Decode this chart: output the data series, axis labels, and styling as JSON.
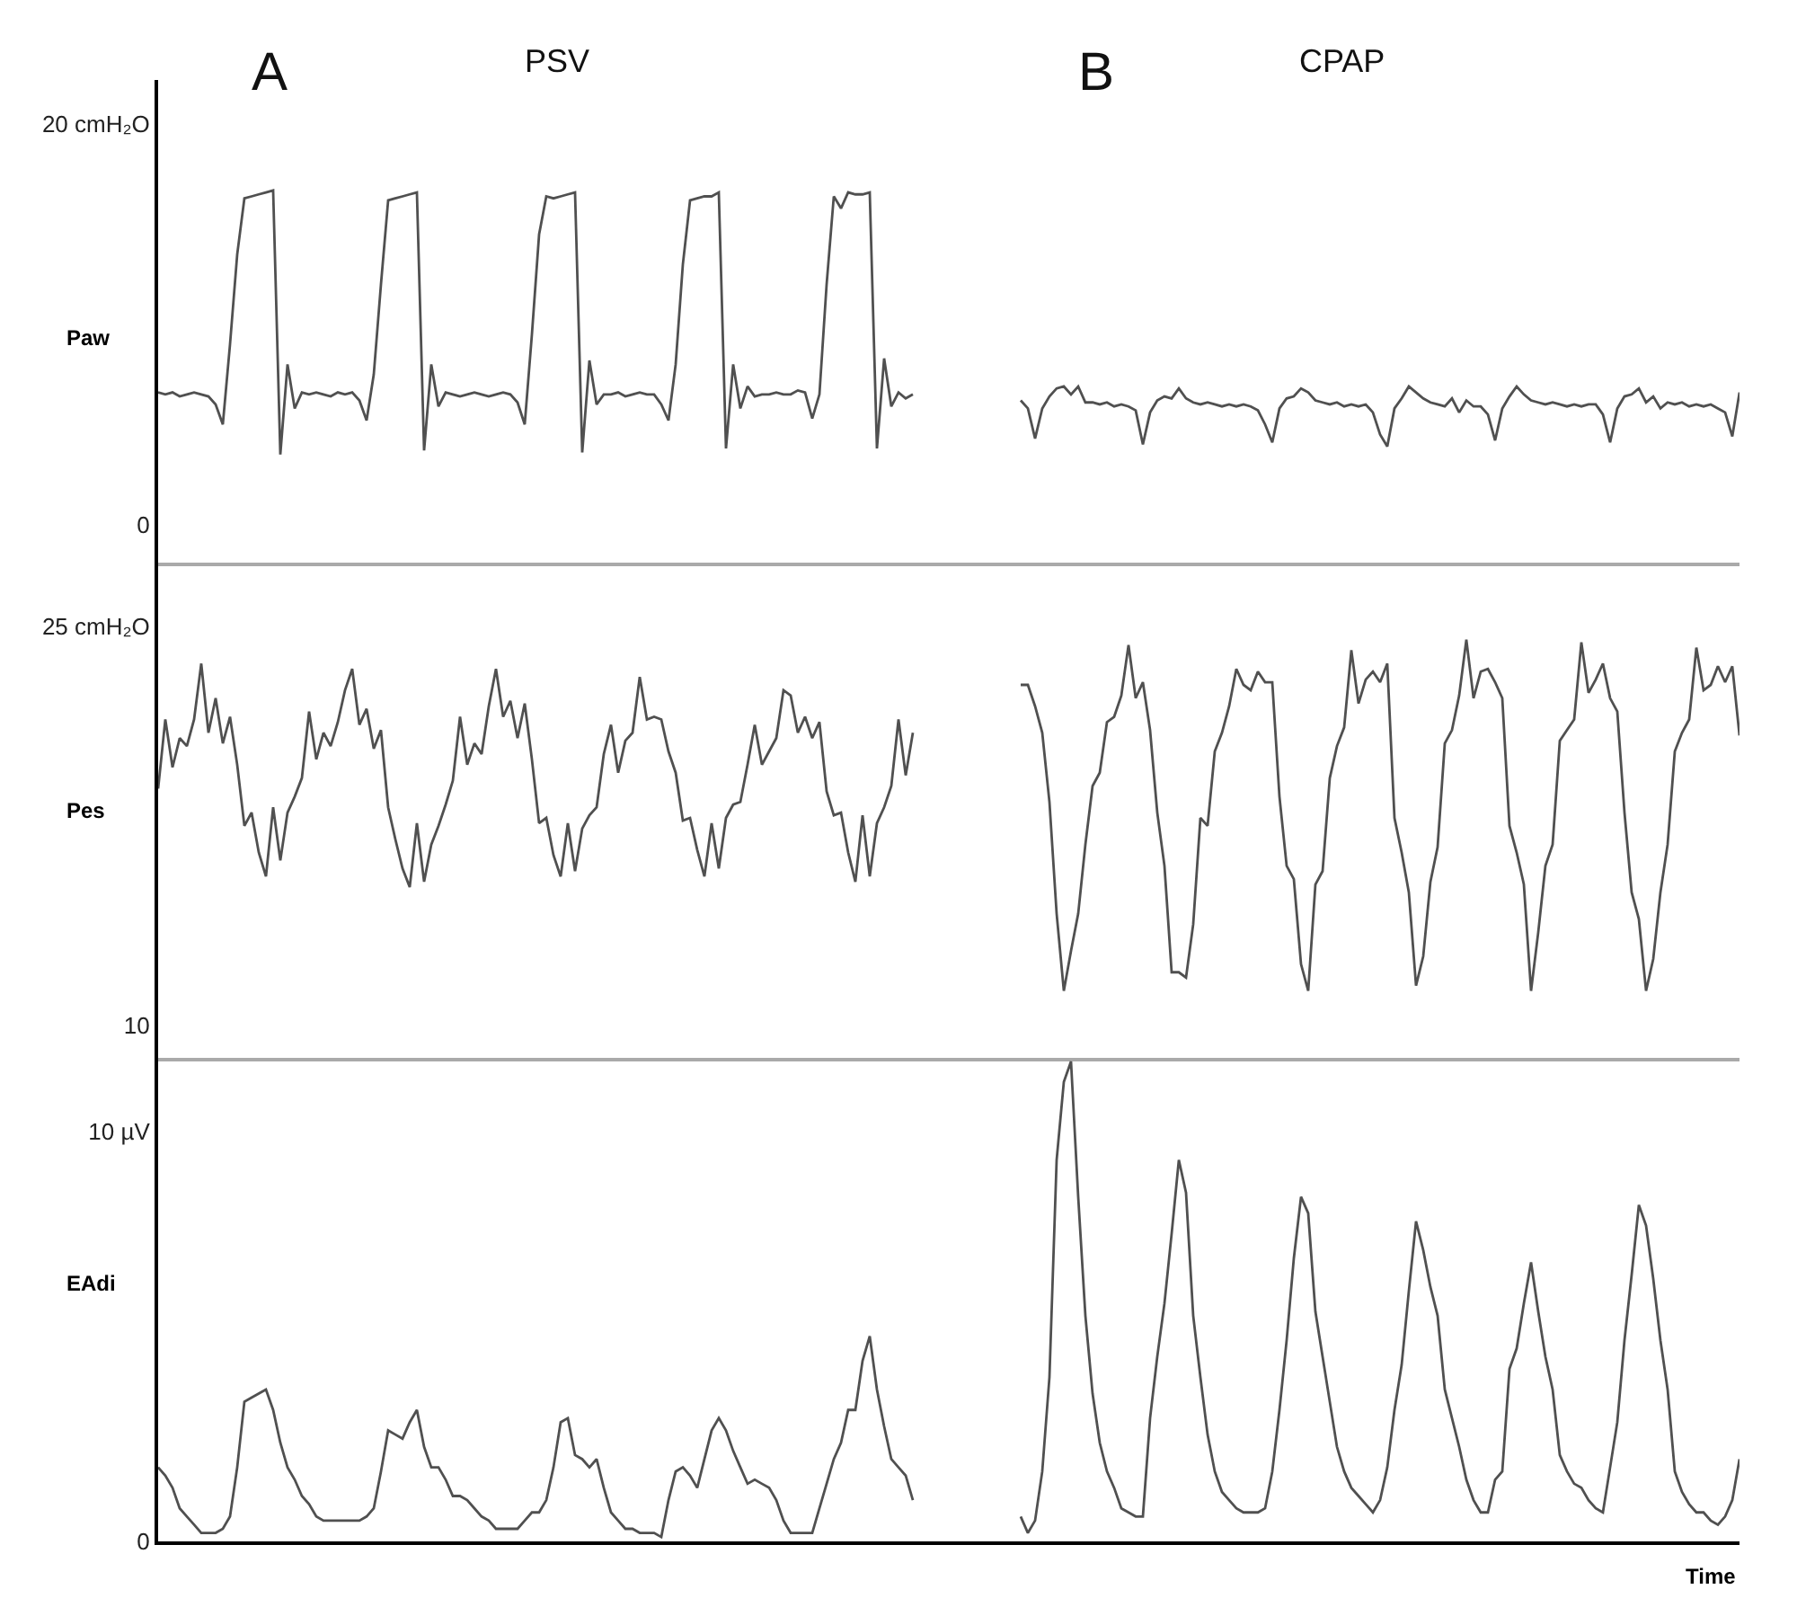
{
  "chart_data": [
    {
      "type": "line",
      "annotations": [
        "A",
        "PSV",
        "B",
        "CPAP"
      ],
      "ylabel": "Paw",
      "ylim": [
        -1.9,
        22.2
      ],
      "yticks": [
        {
          "value": 20,
          "label": "20 cmH₂O"
        },
        0
      ],
      "tick_labels": "y",
      "categories": [
        null,
        null,
        null,
        null,
        null,
        null,
        null,
        null,
        null,
        null,
        null,
        null,
        null,
        null,
        null,
        null,
        null,
        null,
        null,
        null,
        null,
        null,
        null,
        null,
        null,
        null,
        null,
        null,
        null,
        null,
        null,
        null,
        null,
        null,
        null,
        null,
        null,
        null,
        null,
        null,
        null,
        null,
        null,
        null,
        null,
        null,
        null,
        null,
        null,
        null,
        null,
        null,
        null,
        null,
        null,
        null,
        null,
        null,
        null,
        null,
        null,
        null,
        null,
        null,
        null,
        null,
        null,
        null,
        null,
        null,
        null,
        null,
        null,
        null,
        null,
        null,
        null,
        null,
        null,
        null,
        null,
        null,
        null,
        null,
        null,
        null,
        null,
        null,
        null,
        null,
        null,
        null,
        null,
        null,
        null,
        null,
        null,
        null,
        null,
        null,
        null,
        null,
        null,
        null,
        null,
        null,
        null,
        null,
        null,
        null,
        null,
        null,
        null,
        null,
        null,
        null,
        null,
        null,
        null,
        null,
        null,
        null,
        null,
        null,
        null,
        null,
        null,
        null,
        null,
        null,
        null,
        null,
        null,
        null,
        null,
        null,
        null,
        null,
        null,
        null,
        null,
        null,
        null,
        null,
        null,
        null,
        null,
        null,
        null,
        null,
        null,
        null,
        null,
        null,
        null,
        null,
        null,
        null,
        null,
        null,
        null,
        null,
        null,
        null,
        null,
        null,
        null,
        null,
        null,
        null,
        null,
        null,
        null,
        null,
        null,
        null,
        null,
        null,
        null,
        null,
        null,
        null,
        null,
        null,
        null,
        null,
        null,
        null,
        null,
        null,
        null,
        null,
        null,
        null,
        null,
        null,
        null,
        null,
        null,
        null,
        null,
        null,
        null,
        null,
        null,
        null,
        null,
        null,
        null,
        null,
        null,
        null,
        null,
        null,
        null,
        null,
        null,
        null,
        null,
        null,
        null
      ],
      "series": [
        {
          "color": "#505050",
          "values": [
            6.6,
            6.5,
            6.6,
            6.4,
            6.5,
            6.6,
            6.5,
            6.4,
            6.0,
            5.0,
            9.0,
            13.5,
            16.3,
            16.4,
            16.5,
            16.6,
            16.7,
            3.5,
            8.0,
            5.8,
            6.6,
            6.5,
            6.6,
            6.5,
            6.4,
            6.6,
            6.5,
            6.6,
            6.2,
            5.2,
            7.5,
            12.0,
            16.2,
            16.3,
            16.4,
            16.5,
            16.6,
            3.7,
            8.0,
            5.9,
            6.6,
            6.5,
            6.4,
            6.5,
            6.6,
            6.5,
            6.4,
            6.5,
            6.6,
            6.5,
            6.1,
            5.0,
            9.5,
            14.5,
            16.4,
            16.3,
            16.4,
            16.5,
            16.6,
            3.6,
            8.2,
            6.0,
            6.5,
            6.5,
            6.6,
            6.4,
            6.5,
            6.6,
            6.5,
            6.5,
            6.0,
            5.2,
            8.0,
            13.0,
            16.2,
            16.3,
            16.4,
            16.4,
            16.6,
            3.8,
            8.0,
            5.8,
            6.9,
            6.4,
            6.5,
            6.5,
            6.6,
            6.5,
            6.5,
            6.7,
            6.6,
            5.3,
            6.5,
            12.0,
            16.4,
            15.8,
            16.6,
            16.5,
            16.5,
            16.6,
            3.8,
            8.3,
            5.9,
            6.6,
            6.3,
            6.5,
            null,
            null,
            null,
            null,
            null,
            null,
            null,
            null,
            null,
            null,
            null,
            null,
            null,
            null,
            null,
            null,
            null,
            null,
            null,
            null,
            null,
            null,
            null,
            null,
            null,
            null,
            null,
            null,
            null,
            null,
            null,
            null,
            null,
            null,
            null,
            null,
            null,
            null,
            null,
            null,
            null,
            null,
            null,
            null,
            null,
            null,
            null,
            null,
            null,
            null,
            null,
            null,
            null,
            null,
            null,
            null,
            null,
            null,
            null,
            null,
            null,
            null,
            null,
            null,
            null,
            null,
            null,
            null,
            null,
            null,
            null,
            null,
            null,
            null,
            null,
            null,
            null,
            null,
            null,
            null,
            null,
            null,
            null,
            null,
            null,
            null,
            null,
            null,
            null,
            null,
            null,
            null,
            null,
            null,
            null,
            null,
            null,
            null,
            null,
            null,
            null,
            null,
            null,
            null,
            null,
            null,
            null,
            null,
            null,
            null,
            null,
            null,
            null,
            null,
            null
          ]
        },
        {
          "color": "#505050",
          "values": [
            null,
            null,
            null,
            null,
            null,
            null,
            null,
            null,
            null,
            null,
            null,
            null,
            null,
            null,
            null,
            null,
            null,
            null,
            null,
            null,
            null,
            null,
            null,
            null,
            null,
            null,
            null,
            null,
            null,
            null,
            null,
            null,
            null,
            null,
            null,
            null,
            null,
            null,
            null,
            null,
            null,
            null,
            null,
            null,
            null,
            null,
            null,
            null,
            null,
            null,
            null,
            null,
            null,
            null,
            null,
            null,
            null,
            null,
            null,
            null,
            null,
            null,
            null,
            null,
            null,
            null,
            null,
            null,
            null,
            null,
            null,
            null,
            null,
            null,
            null,
            null,
            null,
            null,
            null,
            null,
            null,
            null,
            null,
            null,
            null,
            null,
            null,
            null,
            null,
            null,
            null,
            null,
            null,
            null,
            null,
            null,
            null,
            null,
            null,
            null,
            null,
            null,
            null,
            null,
            null,
            null,
            null,
            null,
            null,
            null,
            null,
            null,
            null,
            null,
            null,
            null,
            null,
            null,
            null,
            null,
            6.2,
            5.8,
            4.3,
            5.8,
            6.4,
            6.8,
            6.9,
            6.5,
            6.9,
            6.1,
            6.1,
            6.0,
            6.1,
            5.9,
            6.0,
            5.9,
            5.7,
            4.0,
            5.6,
            6.2,
            6.4,
            6.3,
            6.8,
            6.3,
            6.1,
            6.0,
            6.1,
            6.0,
            5.9,
            6.0,
            5.9,
            6.0,
            5.9,
            5.7,
            5.0,
            4.1,
            5.8,
            6.3,
            6.4,
            6.8,
            6.6,
            6.2,
            6.1,
            6.0,
            6.1,
            5.9,
            6.0,
            5.9,
            6.0,
            5.6,
            4.5,
            3.9,
            5.8,
            6.3,
            6.9,
            6.6,
            6.3,
            6.1,
            6.0,
            5.9,
            6.3,
            5.6,
            6.2,
            5.9,
            5.9,
            5.5,
            4.2,
            5.8,
            6.4,
            6.9,
            6.5,
            6.2,
            6.1,
            6.0,
            6.1,
            6.0,
            5.9,
            6.0,
            5.9,
            6.0,
            6.0,
            5.5,
            4.1,
            5.8,
            6.4,
            6.5,
            6.8,
            6.1,
            6.4,
            5.8,
            6.1,
            6.0,
            6.1,
            5.9,
            6.0,
            5.9,
            6.0,
            5.8,
            5.6,
            4.4,
            6.6
          ]
        }
      ]
    },
    {
      "type": "line",
      "ylabel": "Pes",
      "ylim": [
        8.8,
        27.4
      ],
      "yticks": [
        {
          "value": 25,
          "label": "25 cmH₂O"
        },
        10
      ],
      "tick_labels": "y",
      "categories": [
        null,
        null,
        null,
        null,
        null,
        null,
        null,
        null,
        null,
        null,
        null,
        null,
        null,
        null,
        null,
        null,
        null,
        null,
        null,
        null,
        null,
        null,
        null,
        null,
        null,
        null,
        null,
        null,
        null,
        null,
        null,
        null,
        null,
        null,
        null,
        null,
        null,
        null,
        null,
        null,
        null,
        null,
        null,
        null,
        null,
        null,
        null,
        null,
        null,
        null,
        null,
        null,
        null,
        null,
        null,
        null,
        null,
        null,
        null,
        null,
        null,
        null,
        null,
        null,
        null,
        null,
        null,
        null,
        null,
        null,
        null,
        null,
        null,
        null,
        null,
        null,
        null,
        null,
        null,
        null,
        null,
        null,
        null,
        null,
        null,
        null,
        null,
        null,
        null,
        null,
        null,
        null,
        null,
        null,
        null,
        null,
        null,
        null,
        null,
        null,
        null,
        null,
        null,
        null,
        null,
        null,
        null,
        null,
        null,
        null,
        null,
        null,
        null,
        null,
        null,
        null,
        null,
        null,
        null,
        null,
        null,
        null,
        null,
        null,
        null,
        null,
        null,
        null,
        null,
        null,
        null,
        null,
        null,
        null,
        null,
        null,
        null,
        null,
        null,
        null,
        null,
        null,
        null,
        null,
        null,
        null,
        null,
        null,
        null,
        null,
        null,
        null,
        null,
        null,
        null,
        null,
        null,
        null,
        null,
        null,
        null,
        null,
        null,
        null,
        null,
        null,
        null,
        null,
        null,
        null,
        null,
        null,
        null,
        null,
        null,
        null,
        null,
        null,
        null,
        null,
        null,
        null,
        null,
        null,
        null,
        null,
        null,
        null,
        null,
        null,
        null,
        null,
        null,
        null,
        null,
        null,
        null,
        null,
        null,
        null,
        null,
        null,
        null,
        null,
        null,
        null,
        null,
        null,
        null,
        null,
        null,
        null,
        null,
        null,
        null,
        null,
        null,
        null,
        null,
        null,
        null
      ],
      "series": [
        {
          "color": "#505050",
          "values": [
            18.9,
            21.5,
            19.7,
            20.8,
            20.5,
            21.5,
            23.6,
            21.0,
            22.3,
            20.6,
            21.6,
            19.8,
            17.5,
            18.0,
            16.5,
            15.6,
            18.2,
            16.2,
            18.0,
            18.6,
            19.3,
            21.8,
            20.0,
            21.0,
            20.5,
            21.4,
            22.6,
            23.4,
            21.3,
            21.9,
            20.4,
            21.1,
            18.2,
            17.0,
            15.9,
            15.2,
            17.6,
            15.4,
            16.8,
            17.5,
            18.3,
            19.2,
            21.6,
            19.8,
            20.6,
            20.2,
            22.0,
            23.4,
            21.6,
            22.2,
            20.8,
            22.1,
            20.0,
            17.6,
            17.8,
            16.4,
            15.6,
            17.6,
            15.8,
            17.4,
            17.9,
            18.2,
            20.2,
            21.3,
            19.5,
            20.7,
            21.0,
            23.1,
            21.5,
            21.6,
            21.5,
            20.3,
            19.5,
            17.7,
            17.8,
            16.6,
            15.6,
            17.6,
            15.9,
            17.8,
            18.3,
            18.4,
            19.8,
            21.3,
            19.8,
            20.3,
            20.8,
            22.6,
            22.4,
            21.0,
            21.6,
            20.8,
            21.4,
            18.8,
            17.9,
            18.0,
            16.5,
            15.4,
            17.9,
            15.6,
            17.6,
            18.2,
            19.0,
            21.5,
            19.4,
            21.0,
            null,
            null,
            null,
            null,
            null,
            null,
            null,
            null,
            null,
            null,
            null,
            null,
            null,
            null,
            null,
            null,
            null,
            null,
            null,
            null,
            null,
            null,
            null,
            null,
            null,
            null,
            null,
            null,
            null,
            null,
            null,
            null,
            null,
            null,
            null,
            null,
            null,
            null,
            null,
            null,
            null,
            null,
            null,
            null,
            null,
            null,
            null,
            null,
            null,
            null,
            null,
            null,
            null,
            null,
            null,
            null,
            null,
            null,
            null,
            null,
            null,
            null,
            null,
            null,
            null,
            null,
            null,
            null,
            null,
            null,
            null,
            null,
            null,
            null,
            null,
            null,
            null,
            null,
            null,
            null,
            null,
            null,
            null,
            null,
            null,
            null,
            null,
            null,
            null,
            null,
            null,
            null,
            null,
            null,
            null,
            null,
            null,
            null,
            null,
            null,
            null,
            null,
            null,
            null,
            null,
            null,
            null,
            null,
            null,
            null,
            null,
            null,
            null,
            null,
            null
          ]
        },
        {
          "color": "#505050",
          "values": [
            null,
            null,
            null,
            null,
            null,
            null,
            null,
            null,
            null,
            null,
            null,
            null,
            null,
            null,
            null,
            null,
            null,
            null,
            null,
            null,
            null,
            null,
            null,
            null,
            null,
            null,
            null,
            null,
            null,
            null,
            null,
            null,
            null,
            null,
            null,
            null,
            null,
            null,
            null,
            null,
            null,
            null,
            null,
            null,
            null,
            null,
            null,
            null,
            null,
            null,
            null,
            null,
            null,
            null,
            null,
            null,
            null,
            null,
            null,
            null,
            null,
            null,
            null,
            null,
            null,
            null,
            null,
            null,
            null,
            null,
            null,
            null,
            null,
            null,
            null,
            null,
            null,
            null,
            null,
            null,
            null,
            null,
            null,
            null,
            null,
            null,
            null,
            null,
            null,
            null,
            null,
            null,
            null,
            null,
            null,
            null,
            null,
            null,
            null,
            null,
            null,
            null,
            null,
            null,
            null,
            null,
            null,
            null,
            null,
            null,
            null,
            null,
            null,
            null,
            null,
            null,
            null,
            null,
            null,
            null,
            22.8,
            22.8,
            22.0,
            21.0,
            18.4,
            14.2,
            11.3,
            12.8,
            14.2,
            16.8,
            19.0,
            19.5,
            21.4,
            21.6,
            22.4,
            24.3,
            22.3,
            22.9,
            21.1,
            18.0,
            16.0,
            12.0,
            12.0,
            11.8,
            13.8,
            17.8,
            17.5,
            20.3,
            21.0,
            22.0,
            23.4,
            22.8,
            22.6,
            23.3,
            22.9,
            22.9,
            18.6,
            16.0,
            15.5,
            12.3,
            11.3,
            15.3,
            15.8,
            19.3,
            20.5,
            21.2,
            24.1,
            22.1,
            23.0,
            23.3,
            22.9,
            23.6,
            17.8,
            16.5,
            15.0,
            11.5,
            12.6,
            15.4,
            16.7,
            20.6,
            21.1,
            22.4,
            24.5,
            22.3,
            23.3,
            23.4,
            22.9,
            22.3,
            17.5,
            16.5,
            15.3,
            11.3,
            13.5,
            16.0,
            16.8,
            20.7,
            21.1,
            21.5,
            24.4,
            22.5,
            23.0,
            23.6,
            22.3,
            21.8,
            18.0,
            15.0,
            14.0,
            11.3,
            12.5,
            15.0,
            16.8,
            20.3,
            21.0,
            21.5,
            24.2,
            22.6,
            22.8,
            23.5,
            22.9,
            23.5,
            20.9
          ]
        }
      ]
    },
    {
      "type": "line",
      "ylabel": "EAdi",
      "xlabel": "Time",
      "ylim": [
        0,
        11.8
      ],
      "yticks": [
        {
          "value": 10,
          "label": "10 µV"
        },
        0
      ],
      "tick_labels": "y",
      "categories": [
        null,
        null,
        null,
        null,
        null,
        null,
        null,
        null,
        null,
        null,
        null,
        null,
        null,
        null,
        null,
        null,
        null,
        null,
        null,
        null,
        null,
        null,
        null,
        null,
        null,
        null,
        null,
        null,
        null,
        null,
        null,
        null,
        null,
        null,
        null,
        null,
        null,
        null,
        null,
        null,
        null,
        null,
        null,
        null,
        null,
        null,
        null,
        null,
        null,
        null,
        null,
        null,
        null,
        null,
        null,
        null,
        null,
        null,
        null,
        null,
        null,
        null,
        null,
        null,
        null,
        null,
        null,
        null,
        null,
        null,
        null,
        null,
        null,
        null,
        null,
        null,
        null,
        null,
        null,
        null,
        null,
        null,
        null,
        null,
        null,
        null,
        null,
        null,
        null,
        null,
        null,
        null,
        null,
        null,
        null,
        null,
        null,
        null,
        null,
        null,
        null,
        null,
        null,
        null,
        null,
        null,
        null,
        null,
        null,
        null,
        null,
        null,
        null,
        null,
        null,
        null,
        null,
        null,
        null,
        null,
        null,
        null,
        null,
        null,
        null,
        null,
        null,
        null,
        null,
        null,
        null,
        null,
        null,
        null,
        null,
        null,
        null,
        null,
        null,
        null,
        null,
        null,
        null,
        null,
        null,
        null,
        null,
        null,
        null,
        null,
        null,
        null,
        null,
        null,
        null,
        null,
        null,
        null,
        null,
        null,
        null,
        null,
        null,
        null,
        null,
        null,
        null,
        null,
        null,
        null,
        null,
        null,
        null,
        null,
        null,
        null,
        null,
        null,
        null,
        null,
        null,
        null,
        null,
        null,
        null,
        null,
        null,
        null,
        null,
        null,
        null,
        null,
        null,
        null,
        null,
        null,
        null,
        null,
        null,
        null,
        null,
        null,
        null,
        null,
        null,
        null,
        null,
        null,
        null,
        null,
        null,
        null,
        null,
        null,
        null,
        null,
        null,
        null,
        null,
        null,
        null
      ],
      "series": [
        {
          "color": "#505050",
          "values": [
            1.8,
            1.6,
            1.3,
            0.8,
            0.6,
            0.4,
            0.2,
            0.2,
            0.2,
            0.3,
            0.6,
            1.8,
            3.4,
            3.5,
            3.6,
            3.7,
            3.2,
            2.4,
            1.8,
            1.5,
            1.1,
            0.9,
            0.6,
            0.5,
            0.5,
            0.5,
            0.5,
            0.5,
            0.5,
            0.6,
            0.8,
            1.7,
            2.7,
            2.6,
            2.5,
            2.9,
            3.2,
            2.3,
            1.8,
            1.8,
            1.5,
            1.1,
            1.1,
            1.0,
            0.8,
            0.6,
            0.5,
            0.3,
            0.3,
            0.3,
            0.3,
            0.5,
            0.7,
            0.7,
            1.0,
            1.8,
            2.9,
            3.0,
            2.1,
            2.0,
            1.8,
            2.0,
            1.3,
            0.7,
            0.5,
            0.3,
            0.3,
            0.2,
            0.2,
            0.2,
            0.1,
            1.0,
            1.7,
            1.8,
            1.6,
            1.3,
            2.0,
            2.7,
            3.0,
            2.7,
            2.2,
            1.8,
            1.4,
            1.5,
            1.4,
            1.3,
            1.0,
            0.5,
            0.2,
            0.2,
            0.2,
            0.2,
            0.8,
            1.4,
            2.0,
            2.4,
            3.2,
            3.2,
            4.4,
            5.0,
            3.7,
            2.8,
            2.0,
            1.8,
            1.6,
            1.0,
            null,
            null,
            null,
            null,
            null,
            null,
            null,
            null,
            null,
            null,
            null,
            null,
            null,
            null,
            null,
            null,
            null,
            null,
            null,
            null,
            null,
            null,
            null,
            null,
            null,
            null,
            null,
            null,
            null,
            null,
            null,
            null,
            null,
            null,
            null,
            null,
            null,
            null,
            null,
            null,
            null,
            null,
            null,
            null,
            null,
            null,
            null,
            null,
            null,
            null,
            null,
            null,
            null,
            null,
            null,
            null,
            null,
            null,
            null,
            null,
            null,
            null,
            null,
            null,
            null,
            null,
            null,
            null,
            null,
            null,
            null,
            null,
            null,
            null,
            null,
            null,
            null,
            null,
            null,
            null,
            null,
            null,
            null,
            null,
            null,
            null,
            null,
            null,
            null,
            null,
            null,
            null,
            null,
            null,
            null,
            null,
            null,
            null,
            null,
            null,
            null,
            null,
            null,
            null,
            null,
            null,
            null,
            null,
            null,
            null,
            null,
            null,
            null,
            null,
            null
          ]
        },
        {
          "color": "#505050",
          "values": [
            null,
            null,
            null,
            null,
            null,
            null,
            null,
            null,
            null,
            null,
            null,
            null,
            null,
            null,
            null,
            null,
            null,
            null,
            null,
            null,
            null,
            null,
            null,
            null,
            null,
            null,
            null,
            null,
            null,
            null,
            null,
            null,
            null,
            null,
            null,
            null,
            null,
            null,
            null,
            null,
            null,
            null,
            null,
            null,
            null,
            null,
            null,
            null,
            null,
            null,
            null,
            null,
            null,
            null,
            null,
            null,
            null,
            null,
            null,
            null,
            null,
            null,
            null,
            null,
            null,
            null,
            null,
            null,
            null,
            null,
            null,
            null,
            null,
            null,
            null,
            null,
            null,
            null,
            null,
            null,
            null,
            null,
            null,
            null,
            null,
            null,
            null,
            null,
            null,
            null,
            null,
            null,
            null,
            null,
            null,
            null,
            null,
            null,
            null,
            null,
            null,
            null,
            null,
            null,
            null,
            null,
            null,
            null,
            null,
            null,
            null,
            null,
            null,
            null,
            null,
            null,
            null,
            null,
            null,
            null,
            0.6,
            0.2,
            0.5,
            1.7,
            4.0,
            9.3,
            11.2,
            11.7,
            8.4,
            5.5,
            3.6,
            2.4,
            1.7,
            1.3,
            0.8,
            0.7,
            0.6,
            0.6,
            3.0,
            4.5,
            5.8,
            7.5,
            9.3,
            8.5,
            5.5,
            4.0,
            2.6,
            1.7,
            1.2,
            1.0,
            0.8,
            0.7,
            0.7,
            0.7,
            0.8,
            1.7,
            3.2,
            4.9,
            6.9,
            8.4,
            8.0,
            5.6,
            4.5,
            3.4,
            2.3,
            1.7,
            1.3,
            1.1,
            0.9,
            0.7,
            1.0,
            1.8,
            3.2,
            4.3,
            6.1,
            7.8,
            7.1,
            6.2,
            5.5,
            3.7,
            3.0,
            2.3,
            1.5,
            1.0,
            0.7,
            0.7,
            1.5,
            1.7,
            4.2,
            4.7,
            5.8,
            6.8,
            5.6,
            4.5,
            3.7,
            2.1,
            1.7,
            1.4,
            1.3,
            1.0,
            0.8,
            0.7,
            1.8,
            2.9,
            4.9,
            6.5,
            8.2,
            7.7,
            6.4,
            4.9,
            3.7,
            1.7,
            1.2,
            0.9,
            0.7,
            0.7,
            0.5,
            0.4,
            0.6,
            1.0,
            2.0
          ]
        }
      ]
    }
  ]
}
